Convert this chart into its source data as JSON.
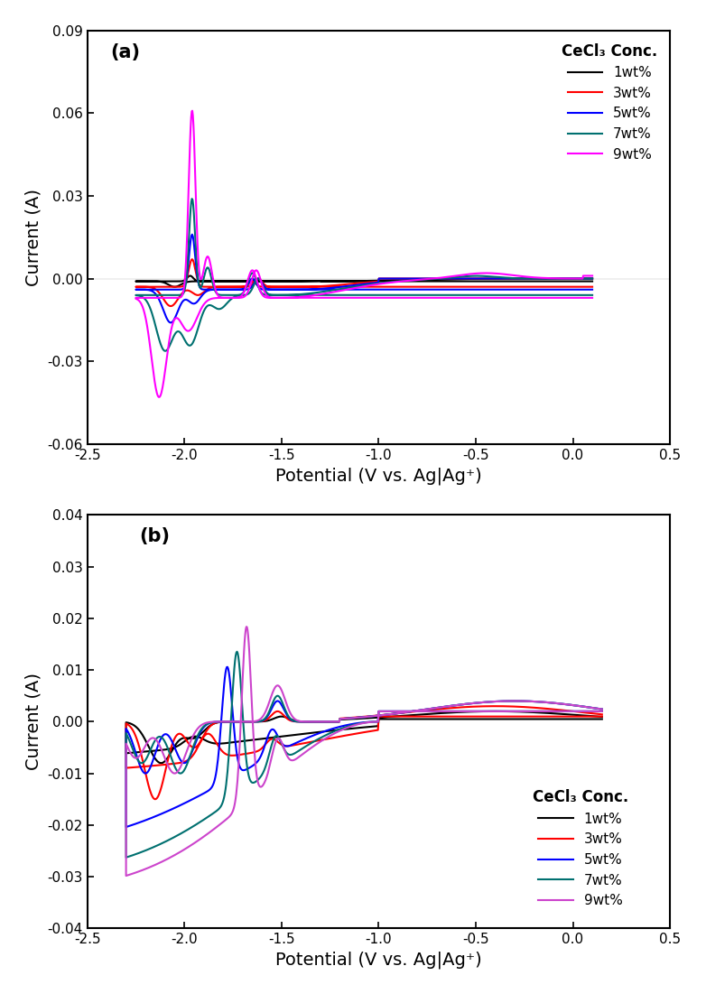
{
  "panel_a": {
    "label": "(a)",
    "xlim": [
      -2.5,
      0.5
    ],
    "ylim": [
      -0.06,
      0.09
    ],
    "xticks": [
      -2.5,
      -2.0,
      -1.5,
      -1.0,
      -0.5,
      0.0,
      0.5
    ],
    "yticks": [
      -0.06,
      -0.03,
      0.0,
      0.03,
      0.06,
      0.09
    ],
    "xlabel": "Potential (V vs. Ag|Ag⁺)",
    "ylabel": "Current (A)",
    "legend_title": "CeCl₃ Conc.",
    "legend_labels": [
      "1wt%",
      "3wt%",
      "5wt%",
      "7wt%",
      "9wt%"
    ],
    "colors": [
      "black",
      "red",
      "blue",
      "#007070",
      "magenta"
    ]
  },
  "panel_b": {
    "label": "(b)",
    "xlim": [
      -2.5,
      0.5
    ],
    "ylim": [
      -0.04,
      0.04
    ],
    "xticks": [
      -2.5,
      -2.0,
      -1.5,
      -1.0,
      -0.5,
      0.0,
      0.5
    ],
    "yticks": [
      -0.04,
      -0.03,
      -0.02,
      -0.01,
      0.0,
      0.01,
      0.02,
      0.03,
      0.04
    ],
    "xlabel": "Potential (V vs. Ag|Ag⁺)",
    "ylabel": "Current (A)",
    "legend_title": "CeCl₃ Conc.",
    "legend_labels": [
      "1wt%",
      "3wt%",
      "5wt%",
      "7wt%",
      "9wt%"
    ],
    "colors": [
      "black",
      "red",
      "blue",
      "#007070",
      "#cc44cc"
    ]
  },
  "figure_bg": "white",
  "axes_linewidth": 1.5,
  "tick_fontsize": 11,
  "label_fontsize": 14,
  "legend_fontsize": 11,
  "line_width": 1.5
}
